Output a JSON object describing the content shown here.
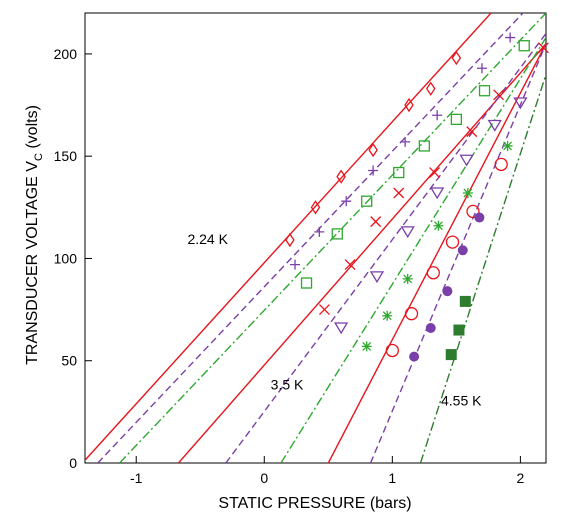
{
  "chart_data": {
    "type": "scatter",
    "xlabel": "STATIC PRESSURE (bars)",
    "ylabel_main": "TRANSDUCER  VOLTAGE  V",
    "ylabel_sub": "C",
    "ylabel_unit": "(volts)",
    "xlim": [
      -1.4,
      2.2
    ],
    "ylim": [
      0,
      220
    ],
    "xticks": [
      -1,
      0,
      1,
      2
    ],
    "yticks": [
      0,
      50,
      100,
      150,
      200
    ],
    "grid": false,
    "annotations": [
      {
        "text": "2.24 K",
        "x": -0.6,
        "y": 107
      },
      {
        "text": "3.5  K",
        "x": 0.05,
        "y": 36
      },
      {
        "text": "4.55  K",
        "x": 1.38,
        "y": 28
      }
    ],
    "series": [
      {
        "marker": "diamond",
        "color": "#e8141c",
        "line": "solid",
        "fit": [
          [
            -1.42,
            0
          ],
          [
            1.8,
            222
          ]
        ],
        "points": [
          [
            0.2,
            109
          ],
          [
            0.4,
            125
          ],
          [
            0.6,
            140
          ],
          [
            0.85,
            153
          ],
          [
            1.13,
            175
          ],
          [
            1.3,
            183
          ],
          [
            1.5,
            198
          ]
        ]
      },
      {
        "marker": "plus",
        "color": "#7b3fa8",
        "line": "dashed",
        "fit": [
          [
            -1.3,
            0
          ],
          [
            2.05,
            222
          ]
        ],
        "points": [
          [
            0.24,
            97
          ],
          [
            0.43,
            113
          ],
          [
            0.64,
            128
          ],
          [
            0.85,
            143
          ],
          [
            1.1,
            157
          ],
          [
            1.35,
            170
          ],
          [
            1.7,
            193
          ],
          [
            1.92,
            208
          ]
        ]
      },
      {
        "marker": "square",
        "color": "#2ea82e",
        "line": "dashdot",
        "fit": [
          [
            -1.13,
            0
          ],
          [
            2.2,
            220
          ]
        ],
        "points": [
          [
            0.33,
            88
          ],
          [
            0.57,
            112
          ],
          [
            0.8,
            128
          ],
          [
            1.05,
            142
          ],
          [
            1.25,
            155
          ],
          [
            1.5,
            168
          ],
          [
            1.72,
            182
          ],
          [
            2.03,
            204
          ]
        ]
      },
      {
        "marker": "x",
        "color": "#e8141c",
        "line": "solid",
        "fit": [
          [
            -0.67,
            0
          ],
          [
            2.2,
            205
          ]
        ],
        "points": [
          [
            0.47,
            75
          ],
          [
            0.67,
            97
          ],
          [
            0.87,
            118
          ],
          [
            1.05,
            132
          ],
          [
            1.33,
            142
          ],
          [
            1.62,
            162
          ],
          [
            1.83,
            180
          ],
          [
            2.18,
            203
          ]
        ]
      },
      {
        "marker": "triangle-down",
        "color": "#7b3fa8",
        "line": "dashed",
        "fit": [
          [
            -0.3,
            0
          ],
          [
            2.2,
            210
          ]
        ],
        "points": [
          [
            0.6,
            66
          ],
          [
            0.88,
            91
          ],
          [
            1.12,
            113
          ],
          [
            1.35,
            132
          ],
          [
            1.58,
            148
          ],
          [
            1.8,
            165
          ],
          [
            2.0,
            176
          ]
        ]
      },
      {
        "marker": "asterisk",
        "color": "#2ea82e",
        "line": "dashdot",
        "fit": [
          [
            0.13,
            0
          ],
          [
            2.2,
            208
          ]
        ],
        "points": [
          [
            0.8,
            57
          ],
          [
            0.96,
            72
          ],
          [
            1.12,
            90
          ],
          [
            1.36,
            116
          ],
          [
            1.59,
            132
          ],
          [
            1.9,
            155
          ]
        ]
      },
      {
        "marker": "circle",
        "color": "#e8141c",
        "line": "solid",
        "fit": [
          [
            0.5,
            0
          ],
          [
            2.2,
            205
          ]
        ],
        "points": [
          [
            1.0,
            55
          ],
          [
            1.15,
            73
          ],
          [
            1.32,
            93
          ],
          [
            1.47,
            108
          ],
          [
            1.63,
            123
          ],
          [
            1.85,
            146
          ]
        ]
      },
      {
        "marker": "filled-circle",
        "color": "#7b3fa8",
        "line": "dashed",
        "fit": [
          [
            0.83,
            0
          ],
          [
            2.2,
            205
          ]
        ],
        "points": [
          [
            1.17,
            52
          ],
          [
            1.3,
            66
          ],
          [
            1.43,
            84
          ],
          [
            1.55,
            104
          ],
          [
            1.68,
            120
          ]
        ]
      },
      {
        "marker": "filled-square",
        "color": "#2e7d2e",
        "line": "dashdot",
        "fit": [
          [
            1.22,
            0
          ],
          [
            2.2,
            190
          ]
        ],
        "points": [
          [
            1.46,
            53
          ],
          [
            1.52,
            65
          ],
          [
            1.57,
            79
          ]
        ]
      }
    ]
  }
}
